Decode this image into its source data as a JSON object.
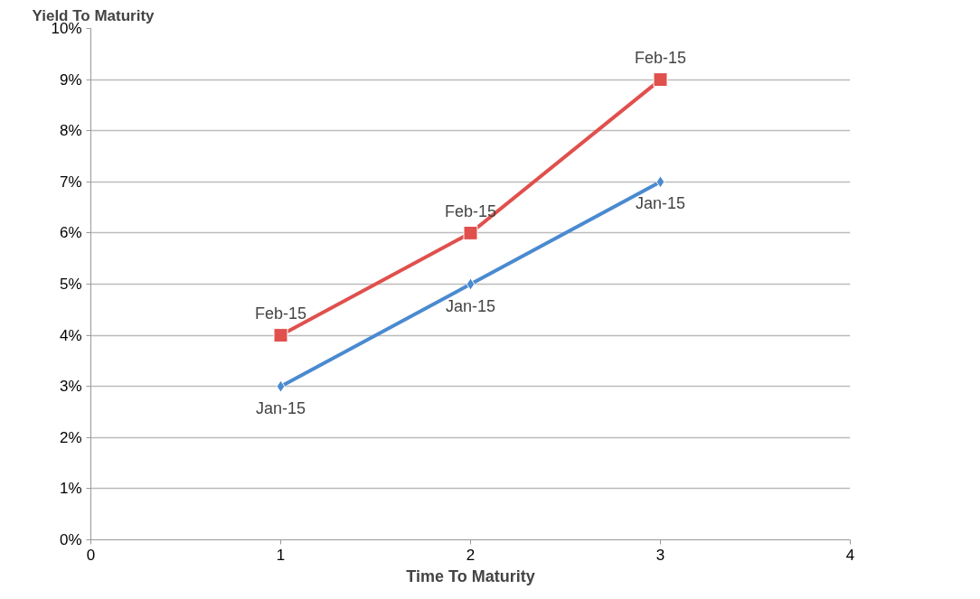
{
  "chart_data": {
    "type": "line",
    "xlabel": "Time To Maturity",
    "ylabel": "Yield To Maturity",
    "xlim": [
      0,
      4
    ],
    "xticks": [
      0,
      1,
      2,
      3,
      4
    ],
    "ylim": [
      0,
      10
    ],
    "yticks": [
      {
        "value": 0,
        "label": "0%"
      },
      {
        "value": 1,
        "label": "1%"
      },
      {
        "value": 2,
        "label": "2%"
      },
      {
        "value": 3,
        "label": "3%"
      },
      {
        "value": 4,
        "label": "4%"
      },
      {
        "value": 5,
        "label": "5%"
      },
      {
        "value": 6,
        "label": "6%"
      },
      {
        "value": 7,
        "label": "7%"
      },
      {
        "value": 8,
        "label": "8%"
      },
      {
        "value": 9,
        "label": "9%"
      },
      {
        "value": 10,
        "label": "10%"
      }
    ],
    "grid": "y",
    "series": [
      {
        "name": "Jan-15",
        "color": "#4a8ad0",
        "x": [
          1,
          2,
          3
        ],
        "values": [
          3,
          5,
          7
        ],
        "marker": "diamond"
      },
      {
        "name": "Feb-15",
        "color": "#e0504d",
        "x": [
          1,
          2,
          3
        ],
        "values": [
          4,
          6,
          9
        ],
        "marker": "square"
      }
    ]
  }
}
